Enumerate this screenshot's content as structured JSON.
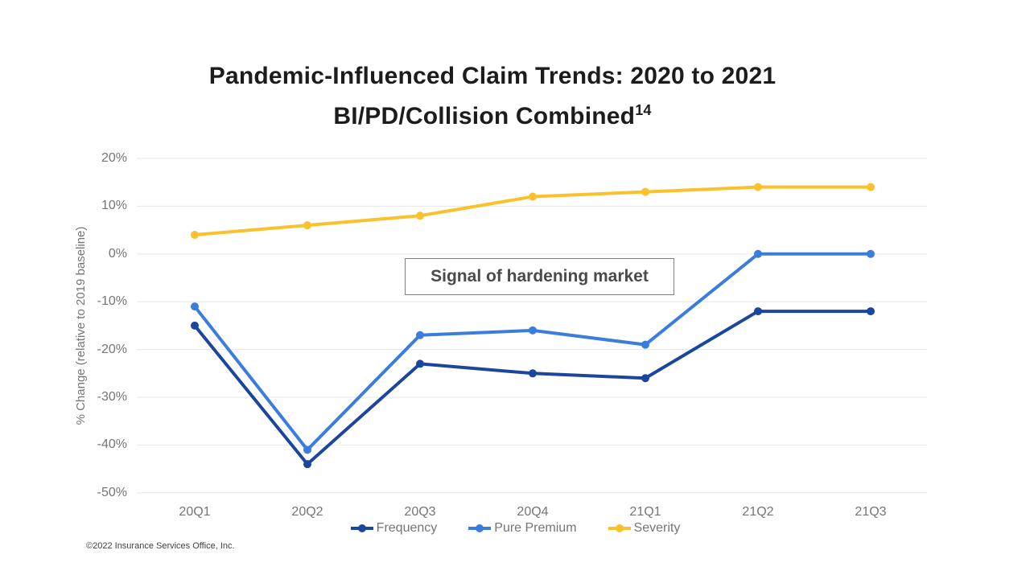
{
  "title": {
    "line1": "Pandemic-Influenced Claim Trends: 2020 to 2021",
    "line2": "BI/PD/Collision Combined",
    "line2_superscript": "14"
  },
  "chart_data": {
    "type": "line",
    "categories": [
      "20Q1",
      "20Q2",
      "20Q3",
      "20Q4",
      "21Q1",
      "21Q2",
      "21Q3"
    ],
    "series": [
      {
        "name": "Frequency",
        "color": "#1b469e",
        "values": [
          -15,
          -44,
          -23,
          -25,
          -26,
          -12,
          -12
        ]
      },
      {
        "name": "Pure Premium",
        "color": "#3b7ddd",
        "values": [
          -11,
          -41,
          -17,
          -16,
          -19,
          0,
          0
        ]
      },
      {
        "name": "Severity",
        "color": "#fbc12d",
        "values": [
          4,
          6,
          8,
          12,
          13,
          14,
          14
        ]
      }
    ],
    "title": "Pandemic-Influenced Claim Trends: 2020 to 2021 BI/PD/Collision Combined",
    "xlabel": "",
    "ylabel": "% Change (relative to 2019 baseline)",
    "ylim": [
      -50,
      20
    ],
    "ytick_step": 10,
    "ytick_suffix": "%",
    "grid": true,
    "legend_position": "bottom",
    "annotation": "Signal of hardening market",
    "gridline_color": "#e6e6e6",
    "tick_label_color": "#757575"
  },
  "footer": {
    "copyright": "©2022 Insurance Services Office, Inc."
  }
}
